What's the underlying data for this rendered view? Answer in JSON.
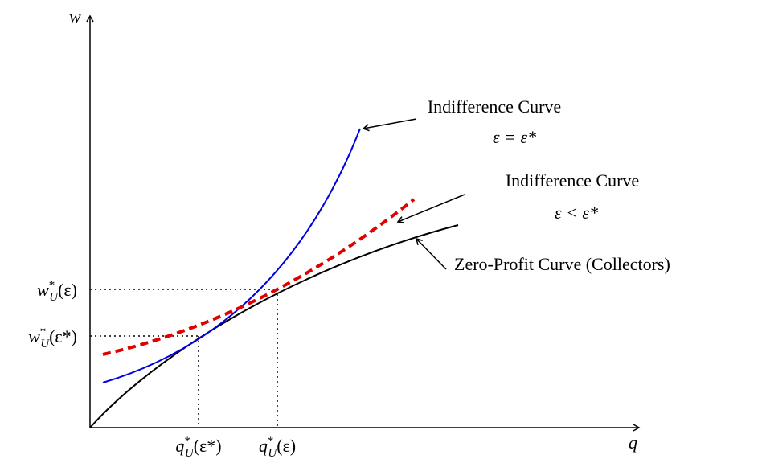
{
  "axes": {
    "y_label": "w",
    "x_label": "q"
  },
  "w_labels": [
    {
      "base": "w",
      "sup": "*",
      "sub": "U",
      "arg": "(ε)"
    },
    {
      "base": "w",
      "sup": "*",
      "sub": "U",
      "arg": "(ε*)"
    }
  ],
  "q_labels": [
    {
      "base": "q",
      "sup": "*",
      "sub": "U",
      "arg": "(ε*)"
    },
    {
      "base": "q",
      "sup": "*",
      "sub": "U",
      "arg": "(ε)"
    }
  ],
  "annotations": [
    {
      "title": "Indifference Curve",
      "condition": "ε = ε*"
    },
    {
      "title": "Indifference Curve",
      "condition": "ε < ε*"
    },
    {
      "title": "Zero-Profit Curve (Collectors)"
    }
  ]
}
